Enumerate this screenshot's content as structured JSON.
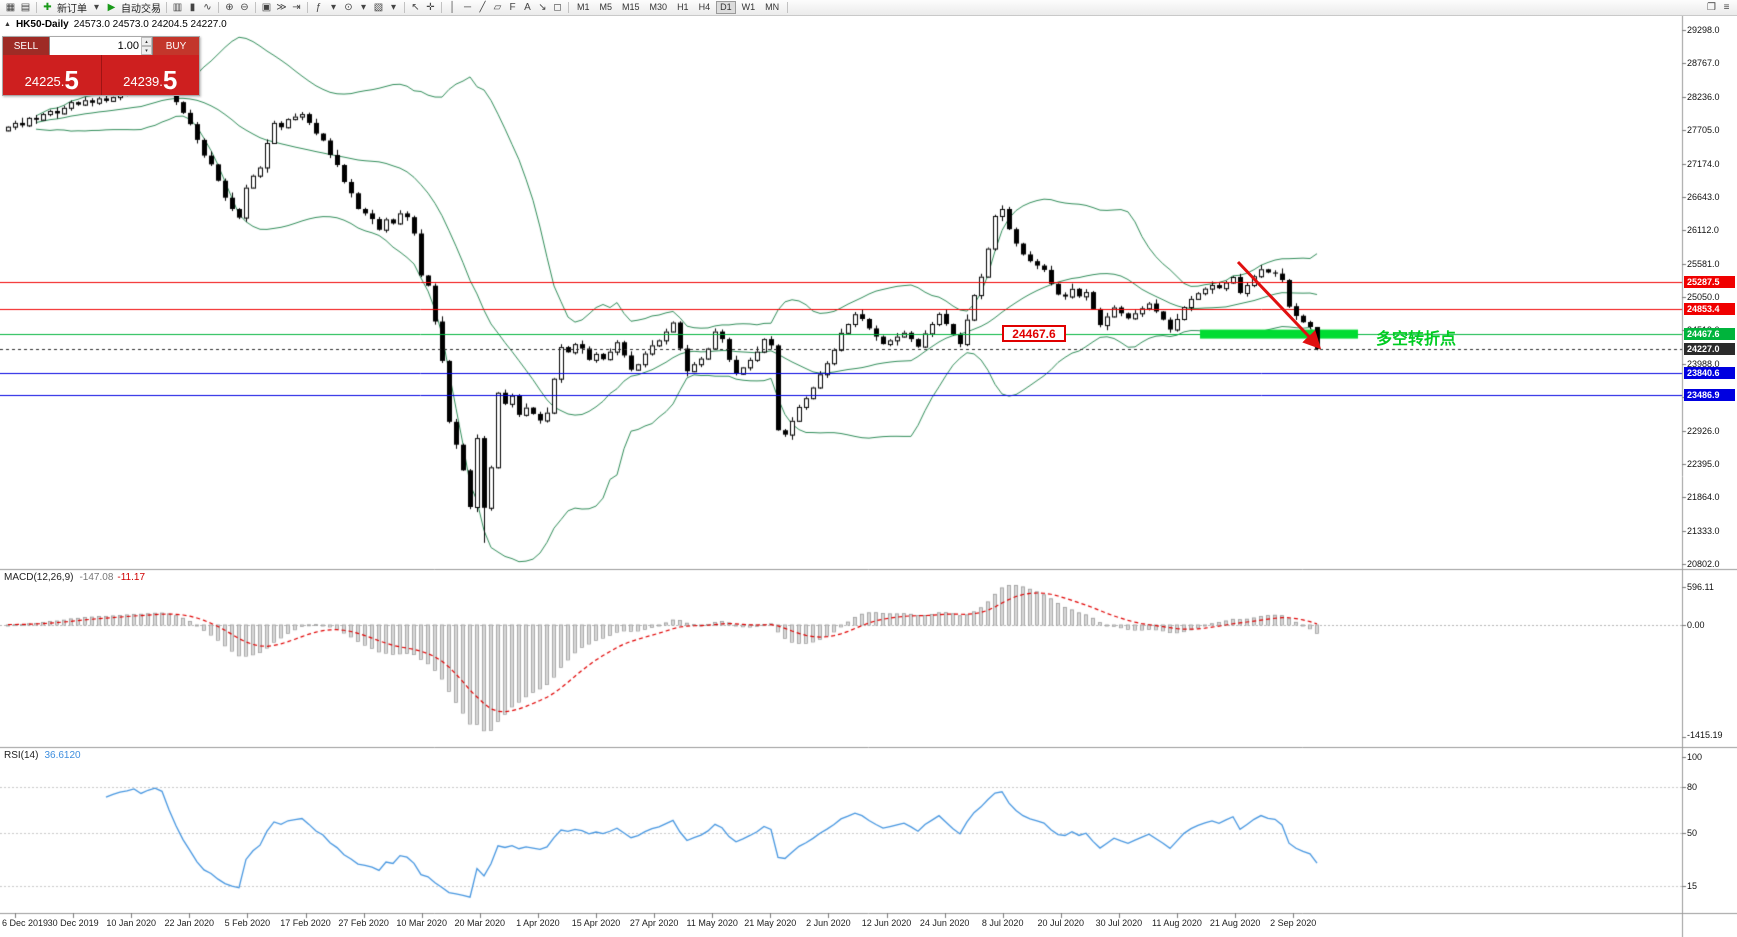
{
  "colors": {
    "bull": "#FFFFFF",
    "bear": "#000000",
    "outline": "#000000",
    "bollinger": "#2E8B57",
    "macd_hist": "#D8D8D8",
    "macd_hist_stroke": "#9A9A9A",
    "macd_signal": "#E00000",
    "rsi_line": "#4696E0"
  },
  "toolbar": {
    "items": [
      {
        "type": "icon",
        "name": "new-chart-icon",
        "glyph": "▦"
      },
      {
        "type": "icon",
        "name": "profiles-icon",
        "glyph": "▤"
      },
      {
        "type": "sep"
      },
      {
        "type": "icon",
        "name": "new-order-plus-icon",
        "glyph": "✚",
        "accent": "#1a9a1a"
      },
      {
        "type": "text",
        "name": "new-order-button",
        "label": "新订单"
      },
      {
        "type": "icon",
        "name": "dropdown-caret-icon",
        "glyph": "▾"
      },
      {
        "type": "icon",
        "name": "auto-trading-play-icon",
        "glyph": "▶",
        "accent": "#1a9a1a"
      },
      {
        "type": "text",
        "name": "auto-trading-button",
        "label": "自动交易"
      },
      {
        "type": "sep"
      },
      {
        "type": "icon",
        "name": "bar-chart-icon",
        "glyph": "▥"
      },
      {
        "type": "icon",
        "name": "candlestick-chart-icon",
        "glyph": "▮"
      },
      {
        "type": "icon",
        "name": "line-chart-icon",
        "glyph": "∿"
      },
      {
        "type": "sep"
      },
      {
        "type": "icon",
        "name": "zoom-in-icon",
        "glyph": "⊕"
      },
      {
        "type": "icon",
        "name": "zoom-out-icon",
        "glyph": "⊖"
      },
      {
        "type": "sep"
      },
      {
        "type": "icon",
        "name": "tile-windows-icon",
        "glyph": "▣"
      },
      {
        "type": "icon",
        "name": "auto-scroll-icon",
        "glyph": "≫"
      },
      {
        "type": "icon",
        "name": "chart-shift-icon",
        "glyph": "⇥"
      },
      {
        "type": "sep"
      },
      {
        "type": "icon",
        "name": "indicators-icon",
        "glyph": "ƒ"
      },
      {
        "type": "icon",
        "name": "dropdown-caret-icon",
        "glyph": "▾"
      },
      {
        "type": "icon",
        "name": "periods-icon",
        "glyph": "⊙"
      },
      {
        "type": "icon",
        "name": "dropdown-caret-icon",
        "glyph": "▾"
      },
      {
        "type": "icon",
        "name": "templates-icon",
        "glyph": "▧"
      },
      {
        "type": "icon",
        "name": "dropdown-caret-icon",
        "glyph": "▾"
      },
      {
        "type": "sep"
      },
      {
        "type": "icon",
        "name": "cursor-icon",
        "glyph": "↖"
      },
      {
        "type": "icon",
        "name": "crosshair-icon",
        "glyph": "✛"
      },
      {
        "type": "sep"
      },
      {
        "type": "icon",
        "name": "vertical-line-icon",
        "glyph": "│"
      },
      {
        "type": "icon",
        "name": "horizontal-line-icon",
        "glyph": "─"
      },
      {
        "type": "icon",
        "name": "trendline-icon",
        "glyph": "╱"
      },
      {
        "type": "icon",
        "name": "channel-icon",
        "glyph": "▱"
      },
      {
        "type": "icon",
        "name": "fibonacci-icon",
        "glyph": "F"
      },
      {
        "type": "icon",
        "name": "text-label-icon",
        "glyph": "A"
      },
      {
        "type": "icon",
        "name": "arrow-object-icon",
        "glyph": "↘"
      },
      {
        "type": "icon",
        "name": "shapes-icon",
        "glyph": "◻"
      },
      {
        "type": "sep"
      },
      {
        "type": "tf",
        "label": "M1"
      },
      {
        "type": "tf",
        "label": "M5"
      },
      {
        "type": "tf",
        "label": "M15"
      },
      {
        "type": "tf",
        "label": "M30"
      },
      {
        "type": "tf",
        "label": "H1"
      },
      {
        "type": "tf",
        "label": "H4"
      },
      {
        "type": "tf",
        "label": "D1"
      },
      {
        "type": "tf",
        "label": "W1"
      },
      {
        "type": "tf",
        "label": "MN"
      },
      {
        "type": "sep"
      }
    ],
    "active_timeframe": "D1",
    "right_icons": [
      {
        "name": "arrange-windows-icon",
        "glyph": "❐"
      },
      {
        "name": "toolbar-menu-icon",
        "glyph": "≡"
      }
    ]
  },
  "chart": {
    "collapse_icon": "▲",
    "title_symbol": "HK50-Daily",
    "title_ohlc": "24573.0 24573.0 24204.5 24227.0"
  },
  "trade_panel": {
    "sell_label": "SELL",
    "buy_label": "BUY",
    "volume": "1.00",
    "spin_up": "▴",
    "spin_down": "▾",
    "sell_price_main": "24225.",
    "sell_price_big": "5",
    "buy_price_main": "24239.",
    "buy_price_big": "5"
  },
  "levels": [
    {
      "label": "25287.5",
      "value": 25287.5,
      "color": "#F00000",
      "style": "solid"
    },
    {
      "label": "24853.4",
      "value": 24853.4,
      "color": "#F00000",
      "style": "solid"
    },
    {
      "label": "24467.6",
      "value": 24467.6,
      "color": "#00B43C",
      "style": "solid"
    },
    {
      "label": "24227.0",
      "value": 24227.0,
      "color": "#2b2b2b",
      "style": "dash"
    },
    {
      "label": "23840.6",
      "value": 23840.6,
      "color": "#0000E0",
      "style": "solid"
    },
    {
      "label": "23486.9",
      "value": 23486.9,
      "color": "#0000E0",
      "style": "solid"
    }
  ],
  "price_axis": {
    "ticks": [
      "29298.0",
      "28767.0",
      "28236.0",
      "27705.0",
      "27174.0",
      "26643.0",
      "26112.0",
      "25581.0",
      "25050.0",
      "24519.0",
      "23988.0",
      "23457.0",
      "22926.0",
      "22395.0",
      "21864.0",
      "21333.0",
      "20802.0"
    ]
  },
  "macd": {
    "name": "MACD(12,26,9)",
    "main_value": "-147.08",
    "signal_value": "-11.17",
    "axis": [
      "596.11",
      "0.00",
      "-1415.19"
    ]
  },
  "rsi": {
    "name": "RSI(14)",
    "value": "36.6120",
    "axis": [
      "100",
      "80",
      "50",
      "15"
    ],
    "levels": [
      80,
      50,
      15
    ]
  },
  "dates": [
    "6 Dec 2019",
    "30 Dec 2019",
    "10 Jan 2020",
    "22 Jan 2020",
    "5 Feb 2020",
    "17 Feb 2020",
    "27 Feb 2020",
    "10 Mar 2020",
    "20 Mar 2020",
    "1 Apr 2020",
    "15 Apr 2020",
    "27 Apr 2020",
    "11 May 2020",
    "21 May 2020",
    "2 Jun 2020",
    "12 Jun 2020",
    "24 Jun 2020",
    "8 Jul 2020",
    "20 Jul 2020",
    "30 Jul 2020",
    "11 Aug 2020",
    "21 Aug 2020",
    "2 Sep 2020"
  ],
  "annotations": {
    "turning_point_text": "多空转折点",
    "price_callout": "24467.6",
    "green_zone_price": 24467.6,
    "green_zone_color": "#00DC32",
    "arrow_color": "#E01010"
  },
  "chart_data": {
    "type": "candlestick",
    "symbol": "HK50",
    "timeframe": "Daily",
    "price_range": {
      "min": 20802.0,
      "max": 29298.0
    },
    "period_high": 28500,
    "period_low": 21139,
    "last_bar": {
      "open": 24573.0,
      "high": 24573.0,
      "low": 24204.5,
      "close": 24227.0
    },
    "indicators": {
      "bollinger": {
        "period": 20,
        "deviation": 2
      },
      "macd": {
        "fast": 12,
        "slow": 26,
        "signal": 9
      },
      "rsi": {
        "period": 14
      }
    },
    "closes": [
      27760,
      27820,
      27780,
      27900,
      27870,
      27960,
      28010,
      27970,
      28060,
      28150,
      28110,
      28180,
      28140,
      28210,
      28170,
      28230,
      28280,
      28310,
      28360,
      28330,
      28400,
      28450,
      28430,
      28300,
      28150,
      27980,
      27800,
      27550,
      27300,
      27160,
      26900,
      26630,
      26450,
      26313,
      26790,
      26980,
      27110,
      27500,
      27820,
      27750,
      27880,
      27920,
      27960,
      27820,
      27650,
      27540,
      27310,
      27150,
      26880,
      26700,
      26450,
      26380,
      26290,
      26120,
      26285,
      26220,
      26380,
      26320,
      26060,
      25392,
      25230,
      24660,
      24033,
      23064,
      22700,
      22292,
      21709,
      22805,
      21696,
      22340,
      23527,
      23350,
      23480,
      23175,
      23290,
      23190,
      23085,
      23210,
      23750,
      24253,
      24170,
      24300,
      24230,
      24050,
      24145,
      24060,
      24180,
      24330,
      24120,
      23893,
      23980,
      24150,
      24280,
      24360,
      24500,
      24644,
      24230,
      23869,
      23980,
      24070,
      24230,
      24500,
      24380,
      24050,
      23829,
      23930,
      24050,
      24180,
      24380,
      24280,
      22930,
      22860,
      23080,
      23301,
      23440,
      23610,
      23820,
      23996,
      24210,
      24480,
      24620,
      24776,
      24700,
      24550,
      24420,
      24301,
      24360,
      24420,
      24481,
      24380,
      24260,
      24470,
      24620,
      24781,
      24620,
      24450,
      24301,
      24690,
      25080,
      25373,
      25820,
      26339,
      26450,
      26129,
      25900,
      25727,
      25620,
      25550,
      25481,
      25260,
      25089,
      25057,
      25180,
      25060,
      25128,
      24860,
      24603,
      24740,
      24883,
      24790,
      24710,
      24790,
      24870,
      24946,
      24820,
      24690,
      24532,
      24700,
      24890,
      25020,
      25110,
      25183,
      25240,
      25190,
      25280,
      25368,
      25114,
      25240,
      25380,
      25491,
      25440,
      25422,
      25320,
      24900,
      24750,
      24650,
      24573,
      24227
    ]
  }
}
